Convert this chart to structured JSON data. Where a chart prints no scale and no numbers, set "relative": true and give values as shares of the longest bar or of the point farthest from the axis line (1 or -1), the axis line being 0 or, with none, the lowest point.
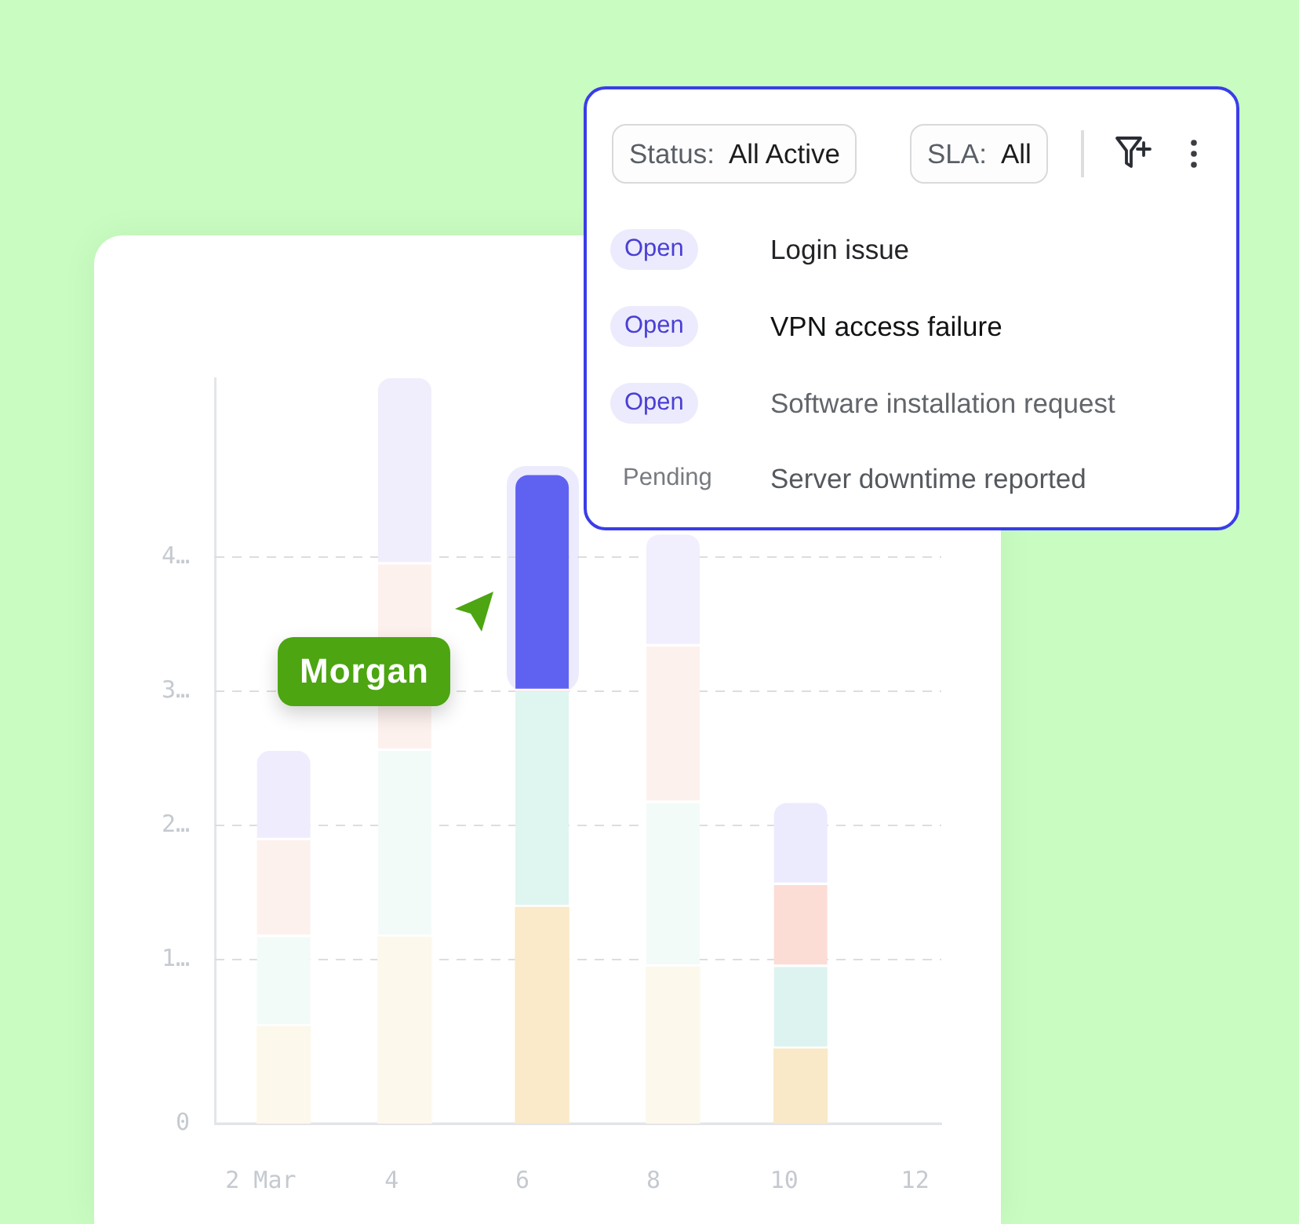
{
  "chart_data": [
    {
      "type": "bar",
      "stacked": true,
      "relative": true,
      "x": [
        2.35,
        4.2,
        6.3,
        8.3,
        10.25
      ],
      "series": [
        {
          "colors": [
            "#fdf8ec",
            "#fdf8ec",
            "#faeac9",
            "#fdf8ec",
            "#f9e9c8"
          ],
          "values": [
            0.13,
            0.25,
            0.29,
            0.21,
            0.1
          ]
        },
        {
          "colors": [
            "#f3fbf9",
            "#f3fbf9",
            "#dff5f0",
            "#f3fbf9",
            "#ddf3ef"
          ],
          "values": [
            0.12,
            0.25,
            0.29,
            0.22,
            0.11
          ]
        },
        {
          "colors": [
            "#fdf1ee",
            "#fdf1ee",
            "#fbddd5",
            "#fdf1ee",
            "#fbddd5"
          ],
          "values": [
            0.13,
            0.25,
            0,
            0.21,
            0.11
          ]
        },
        {
          "colors": [
            "#efedfd",
            "#f0eefd",
            "#5f62f0",
            "#f1effd",
            "#ecebfd"
          ],
          "values": [
            0.12,
            0.25,
            0.29,
            0.15,
            0.11
          ]
        }
      ],
      "xlim": [
        1.3,
        12.4
      ],
      "xticks": [
        {
          "value": 2,
          "label": "2 Mar"
        },
        4,
        6,
        8,
        10,
        12
      ],
      "ref_lines": [
        {
          "axis": "y",
          "value": 0,
          "label": "0",
          "line_style": "solid",
          "color": "#e3e5e8"
        },
        {
          "axis": "y",
          "value": 0.22,
          "label": "1…",
          "line_style": "dashed",
          "color": "#dddddd"
        },
        {
          "axis": "y",
          "value": 0.4,
          "label": "2…",
          "line_style": "dashed",
          "color": "#dddddd"
        },
        {
          "axis": "y",
          "value": 0.58,
          "label": "3…",
          "line_style": "dashed",
          "color": "#dddddd"
        },
        {
          "axis": "y",
          "value": 0.76,
          "label": "4…",
          "line_style": "dashed",
          "color": "#dddddd"
        }
      ],
      "annotations": [
        "Morgan"
      ]
    },
    {
      "type": "other",
      "annotations": [
        "Status:",
        "All Active",
        "SLA:",
        "All",
        "Open",
        "Login issue",
        "Open",
        "VPN access failure",
        "Open",
        "Software installation request",
        "Pending",
        "Server downtime reported"
      ]
    }
  ]
}
